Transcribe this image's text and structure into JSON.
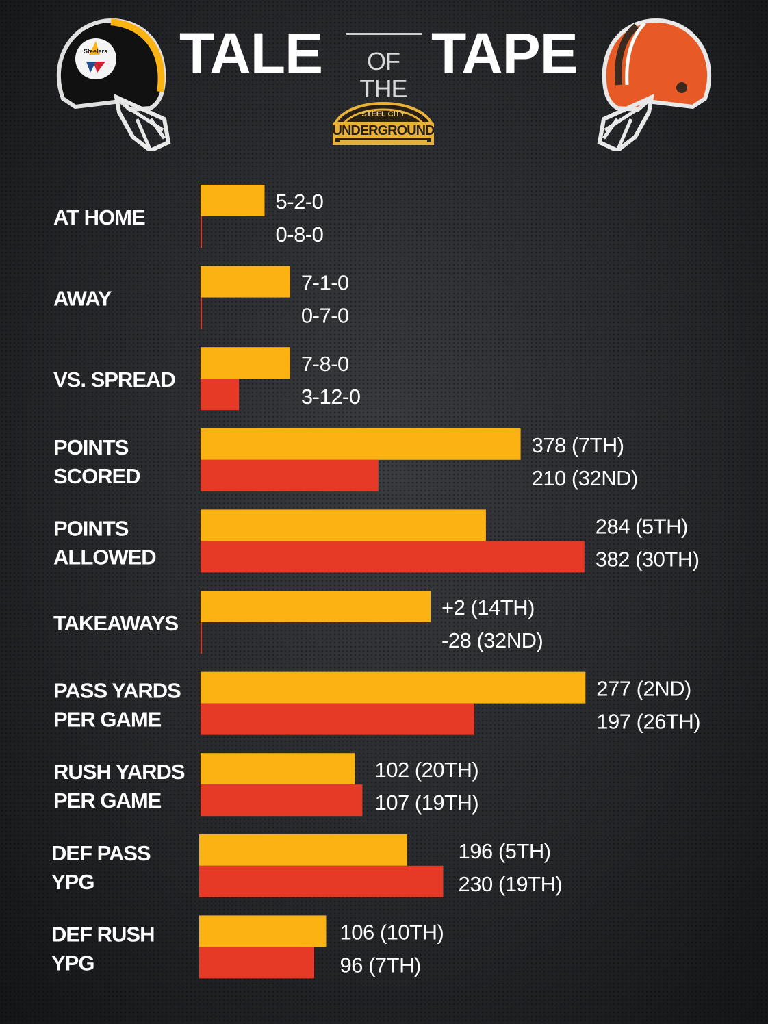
{
  "header": {
    "title_left": "TALE",
    "title_middle": "OF THE",
    "title_right": "TAPE",
    "badge_top": "STEEL CITY",
    "badge_main": "UNDERGROUND"
  },
  "logos": {
    "left_helmet": "steelers-helmet-icon",
    "left_helmet_text": "Steelers",
    "right_helmet": "browns-helmet-icon"
  },
  "colors": {
    "team1_bar": "#fbb313",
    "team2_bar": "#e63a27",
    "text": "#ffffff"
  },
  "chart_data": {
    "type": "bar",
    "orientation": "horizontal",
    "categories": [
      [
        "AT HOME"
      ],
      [
        "AWAY"
      ],
      [
        "VS. SPREAD"
      ],
      [
        "POINTS",
        "SCORED"
      ],
      [
        "POINTS",
        "ALLOWED"
      ],
      [
        "TAKEAWAYS"
      ],
      [
        "PASS YARDS",
        "PER GAME"
      ],
      [
        "RUSH YARDS",
        "PER GAME"
      ],
      [
        "DEF PASS",
        "YPG"
      ],
      [
        "DEF RUSH",
        "YPG"
      ]
    ],
    "series": [
      {
        "values": [
          5,
          7,
          7,
          378,
          284,
          2,
          277,
          102,
          196,
          106
        ],
        "labels": [
          "5-2-0",
          "7-1-0",
          "7-8-0",
          "378 (7TH)",
          "284 (5TH)",
          "+2 (14TH)",
          "277 (2ND)",
          "102 (20TH)",
          "196 (5TH)",
          "106 (10TH)"
        ]
      },
      {
        "values": [
          0,
          0,
          3,
          210,
          382,
          -28,
          197,
          107,
          230,
          96
        ],
        "labels": [
          "0-8-0",
          "0-7-0",
          "3-12-0",
          "210 (32ND)",
          "382 (30TH)",
          "-28 (32ND)",
          "197 (26TH)",
          "107 (19TH)",
          "230 (19TH)",
          "96 (7TH)"
        ]
      }
    ]
  }
}
